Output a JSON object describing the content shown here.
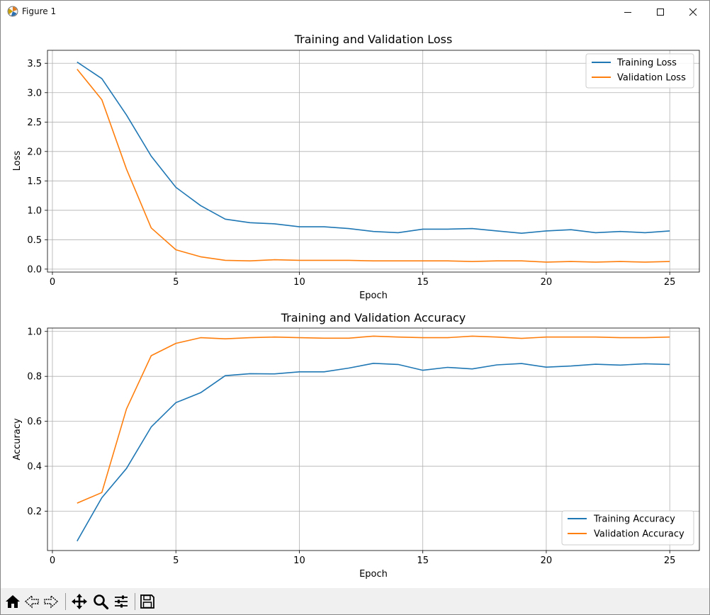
{
  "window": {
    "title": "Figure 1"
  },
  "toolbar": {
    "buttons": [
      {
        "name": "home-button",
        "icon": "home-icon"
      },
      {
        "name": "back-button",
        "icon": "back-arrow-icon"
      },
      {
        "name": "forward-button",
        "icon": "forward-arrow-icon"
      },
      {
        "name": "pan-button",
        "icon": "move-icon"
      },
      {
        "name": "zoom-button",
        "icon": "magnifier-icon"
      },
      {
        "name": "configure-subplots-button",
        "icon": "sliders-icon"
      },
      {
        "name": "save-button",
        "icon": "floppy-disk-icon"
      }
    ]
  },
  "colors": {
    "training": "#1f77b4",
    "validation": "#ff7f0e",
    "grid": "#b0b0b0"
  },
  "chart_data": [
    {
      "type": "line",
      "title": "Training and Validation Loss",
      "xlabel": "Epoch",
      "ylabel": "Loss",
      "xlim": [
        -0.2,
        26.2
      ],
      "ylim": [
        -0.05,
        3.72
      ],
      "xticks": [
        0,
        5,
        10,
        15,
        20,
        25
      ],
      "yticks": [
        0.0,
        0.5,
        1.0,
        1.5,
        2.0,
        2.5,
        3.0,
        3.5
      ],
      "ytick_labels": [
        "0.0",
        "0.5",
        "1.0",
        "1.5",
        "2.0",
        "2.5",
        "3.0",
        "3.5"
      ],
      "grid": true,
      "legend": "top-right",
      "x": [
        1,
        2,
        3,
        4,
        5,
        6,
        7,
        8,
        9,
        10,
        11,
        12,
        13,
        14,
        15,
        16,
        17,
        18,
        19,
        20,
        21,
        22,
        23,
        24,
        25
      ],
      "series": [
        {
          "name": "Training Loss",
          "color": "#1f77b4",
          "values": [
            3.52,
            3.24,
            2.62,
            1.92,
            1.39,
            1.08,
            0.85,
            0.79,
            0.77,
            0.72,
            0.72,
            0.69,
            0.64,
            0.62,
            0.68,
            0.68,
            0.69,
            0.65,
            0.61,
            0.65,
            0.67,
            0.62,
            0.64,
            0.62,
            0.65
          ]
        },
        {
          "name": "Validation Loss",
          "color": "#ff7f0e",
          "values": [
            3.4,
            2.88,
            1.7,
            0.7,
            0.33,
            0.21,
            0.15,
            0.14,
            0.16,
            0.15,
            0.15,
            0.15,
            0.14,
            0.14,
            0.14,
            0.14,
            0.13,
            0.14,
            0.14,
            0.12,
            0.13,
            0.12,
            0.13,
            0.12,
            0.13
          ]
        }
      ]
    },
    {
      "type": "line",
      "title": "Training and Validation Accuracy",
      "xlabel": "Epoch",
      "ylabel": "Accuracy",
      "xlim": [
        -0.2,
        26.2
      ],
      "ylim": [
        0.025,
        1.015
      ],
      "xticks": [
        0,
        5,
        10,
        15,
        20,
        25
      ],
      "yticks": [
        0.2,
        0.4,
        0.6,
        0.8,
        1.0
      ],
      "ytick_labels": [
        "0.2",
        "0.4",
        "0.6",
        "0.8",
        "1.0"
      ],
      "grid": true,
      "legend": "bottom-right",
      "x": [
        1,
        2,
        3,
        4,
        5,
        6,
        7,
        8,
        9,
        10,
        11,
        12,
        13,
        14,
        15,
        16,
        17,
        18,
        19,
        20,
        21,
        22,
        23,
        24,
        25
      ],
      "series": [
        {
          "name": "Training Accuracy",
          "color": "#1f77b4",
          "values": [
            0.067,
            0.26,
            0.39,
            0.575,
            0.683,
            0.727,
            0.803,
            0.812,
            0.811,
            0.82,
            0.82,
            0.837,
            0.858,
            0.853,
            0.827,
            0.84,
            0.833,
            0.851,
            0.857,
            0.841,
            0.846,
            0.854,
            0.85,
            0.856,
            0.853
          ]
        },
        {
          "name": "Validation Accuracy",
          "color": "#ff7f0e",
          "values": [
            0.236,
            0.283,
            0.655,
            0.892,
            0.947,
            0.972,
            0.967,
            0.972,
            0.975,
            0.972,
            0.97,
            0.97,
            0.979,
            0.975,
            0.972,
            0.972,
            0.979,
            0.975,
            0.969,
            0.975,
            0.975,
            0.975,
            0.972,
            0.972,
            0.975
          ]
        }
      ]
    }
  ]
}
